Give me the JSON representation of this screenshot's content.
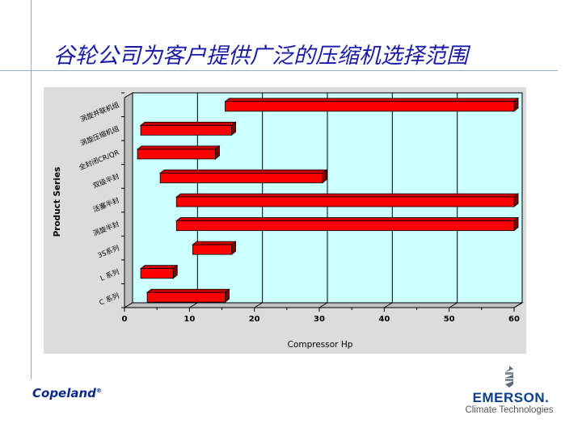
{
  "slide": {
    "title": "谷轮公司为客户提供广泛的压缩机选择范围"
  },
  "logos": {
    "copeland": "Copeland",
    "emerson": "EMERSON.",
    "emerson_tagline": "Climate Technologies"
  },
  "colors": {
    "plot_background": "#ccffff",
    "bar_fill": "#ff0000",
    "bar_dark": "#800000",
    "title_color": "#1a1aa8"
  },
  "chart_data": {
    "type": "bar",
    "orientation": "horizontal",
    "style": "floating-range",
    "categories": [
      "C 系列",
      "L 系列",
      "3S系列",
      "涡旋半封",
      "活塞半封",
      "双级半封",
      "全封闭CR/QR",
      "涡旋压缩机组",
      "涡旋并联机组"
    ],
    "ranges": [
      [
        3.5,
        15.5
      ],
      [
        2.5,
        7.5
      ],
      [
        10.5,
        16.5
      ],
      [
        8,
        60
      ],
      [
        8,
        60
      ],
      [
        5.5,
        30.5
      ],
      [
        2,
        14
      ],
      [
        2.5,
        16.5
      ],
      [
        15.5,
        60
      ]
    ],
    "xlabel": "Compressor Hp",
    "ylabel": "Product Series",
    "xlim": [
      0,
      60
    ],
    "xticks": [
      "0",
      "10",
      "20",
      "30",
      "40",
      "50",
      "60"
    ],
    "grid": "vertical"
  }
}
